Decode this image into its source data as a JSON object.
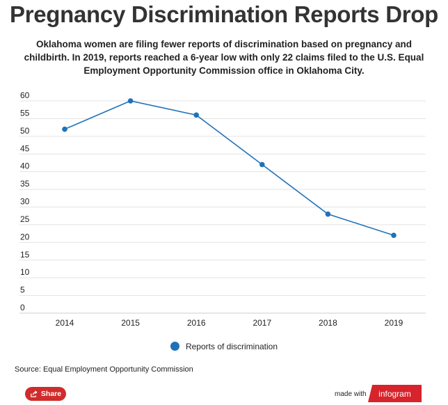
{
  "header": {
    "title": "Pregnancy Discrimination Reports Drop",
    "subtitle": "Oklahoma women are filing fewer reports of discrimination based on pregnancy and childbirth. In 2019, reports reached a 6-year low with only 22 claims filed to the U.S. Equal Employment Opportunity Commission office in Oklahoma City."
  },
  "chart_data": {
    "type": "line",
    "x": [
      "2014",
      "2015",
      "2016",
      "2017",
      "2018",
      "2019"
    ],
    "series": [
      {
        "name": "Reports of discrimination",
        "values": [
          52,
          60,
          56,
          42,
          28,
          22
        ],
        "color": "#1f72b8"
      }
    ],
    "ylim": [
      0,
      60
    ],
    "yticks": [
      0,
      5,
      10,
      15,
      20,
      25,
      30,
      35,
      40,
      45,
      50,
      55,
      60
    ],
    "grid": true,
    "legend_position": "bottom"
  },
  "footer": {
    "source": "Source: Equal Employment Opportunity Commission",
    "share_label": "Share",
    "made_with": "made with",
    "brand": "infogram",
    "brand_color": "#d6232c"
  }
}
